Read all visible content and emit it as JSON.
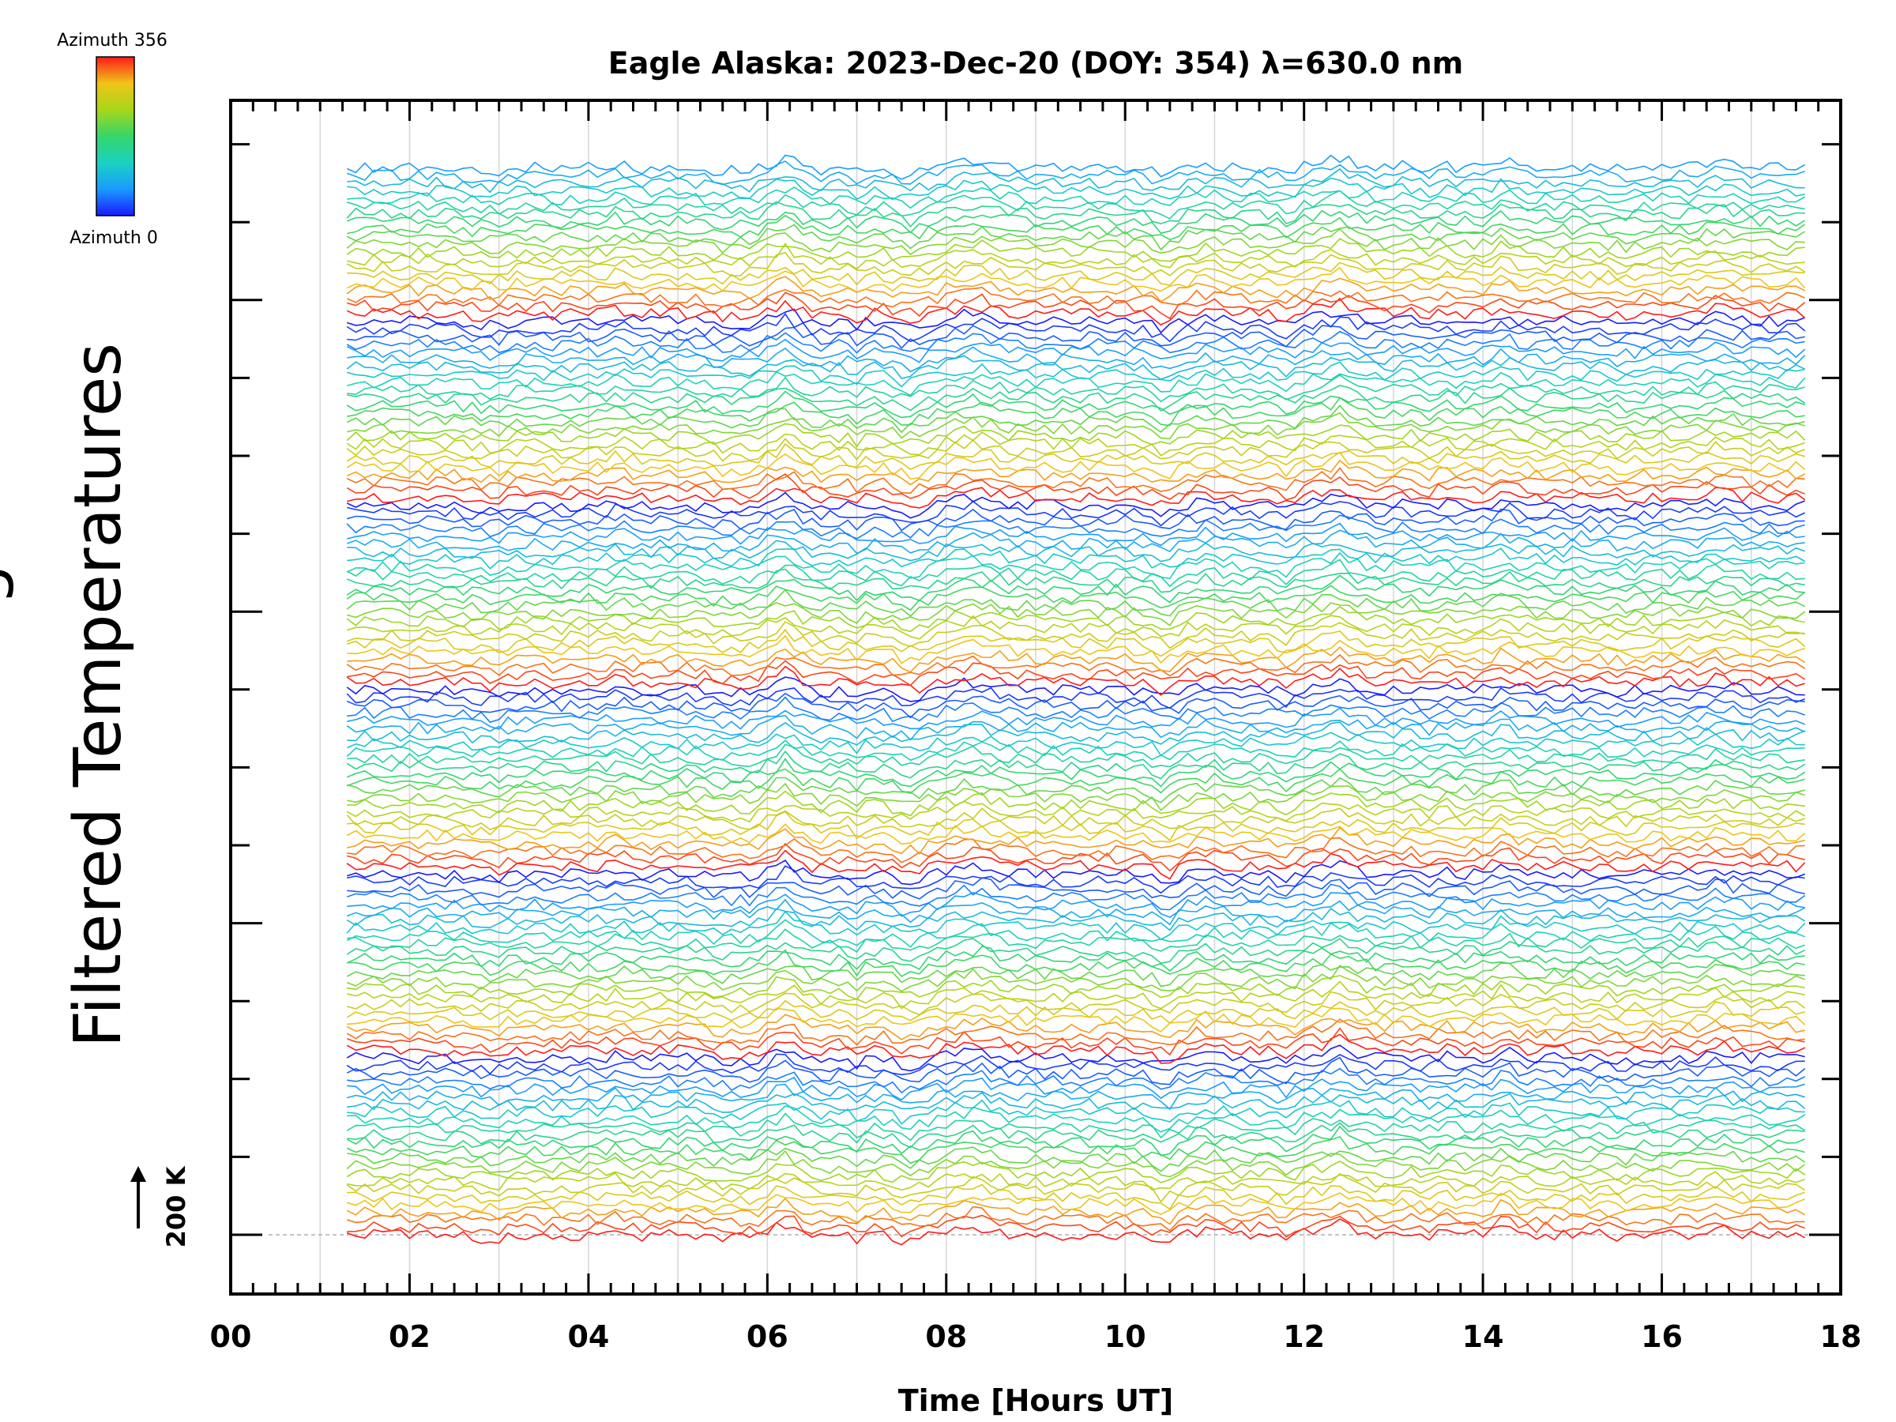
{
  "chart_data": {
    "type": "line",
    "title": "Eagle Alaska: 2023-Dec-20 (DOY: 354) λ=630.0 nm",
    "xlabel": "Time [Hours UT]",
    "ylabel": "Filtered Temperatures",
    "ylabel_partial_prefix": "g",
    "x_ticks": [
      "00",
      "02",
      "04",
      "06",
      "08",
      "10",
      "12",
      "14",
      "16",
      "18"
    ],
    "xlim": [
      0,
      18
    ],
    "x_data_range": [
      1.3,
      17.6
    ],
    "scale_bar_label": "200 K",
    "scale_bar_value_K": 200,
    "grid": "vertical",
    "legend": {
      "placement": "top-left",
      "type": "colorbar",
      "top_label": "Azimuth  356",
      "bottom_label": "Azimuth  0",
      "colormap": "rainbow",
      "range": [
        0,
        356
      ]
    },
    "series_description": "Stacked filtered temperature traces, one per azimuth look direction, vertically offset; colour encodes azimuth (blue = 0, red = 356).",
    "num_series": 140,
    "sample_interval_hours": 0.1
  },
  "colors": {
    "background": "#ffffff",
    "axes": "#000000",
    "grid": "#d6d6d6",
    "colormap_stops": [
      "#1a1aff",
      "#1a9bff",
      "#1ad2c0",
      "#36d66a",
      "#a8d61a",
      "#f0c418",
      "#ff1a1a"
    ]
  }
}
